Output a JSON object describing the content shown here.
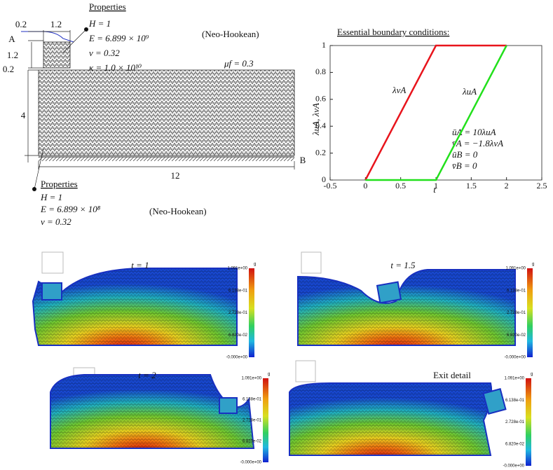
{
  "diagram": {
    "dimensions": [
      "0.2",
      "1.2",
      "1.2",
      "0.2",
      "4",
      "12"
    ],
    "points": [
      "A",
      "B"
    ],
    "indenter_properties": {
      "title": "Properties",
      "lines": [
        "H = 1",
        "E = 6.899 × 10⁹",
        "ν = 0.32",
        "κ = 1.0 × 10¹⁰"
      ],
      "model": "(Neo-Hookean)"
    },
    "friction": "μf = 0.3",
    "block_properties": {
      "title": "Properties",
      "lines": [
        "H = 1",
        "E = 6.899 × 10⁸",
        "ν = 0.32"
      ],
      "model": "(Neo-Hookean)"
    }
  },
  "chart_data": {
    "type": "line",
    "title": "Essential boundary conditions:",
    "x_label": "t",
    "y_label": "λuA, λvA",
    "xlim": [
      -0.5,
      2.5
    ],
    "ylim": [
      0,
      1
    ],
    "xticks": [
      -0.5,
      0,
      0.5,
      1,
      1.5,
      2,
      2.5
    ],
    "yticks": [
      0,
      0.2,
      0.4,
      0.6,
      0.8,
      1
    ],
    "series": [
      {
        "name": "λvA",
        "color": "#e8141c",
        "x": [
          0,
          1,
          2
        ],
        "values": [
          0,
          1,
          1
        ]
      },
      {
        "name": "λuA",
        "color": "#22e01c",
        "x": [
          0,
          1,
          2
        ],
        "values": [
          0,
          0,
          1
        ]
      }
    ],
    "annotations": [
      "ūA = 10λuA",
      "v̄A = −1.8λvA",
      "ūB = 0",
      "v̄B = 0"
    ]
  },
  "colorbar": {
    "title": "g",
    "labels": [
      "1.091e+00",
      "6.138e-01",
      "2.728e-01",
      "6.820e-02",
      "-0.000e+00"
    ]
  },
  "panels": [
    {
      "label": "t = 1"
    },
    {
      "label": "t = 1.5"
    },
    {
      "label": "t = 2"
    },
    {
      "label": "Exit detail"
    }
  ]
}
